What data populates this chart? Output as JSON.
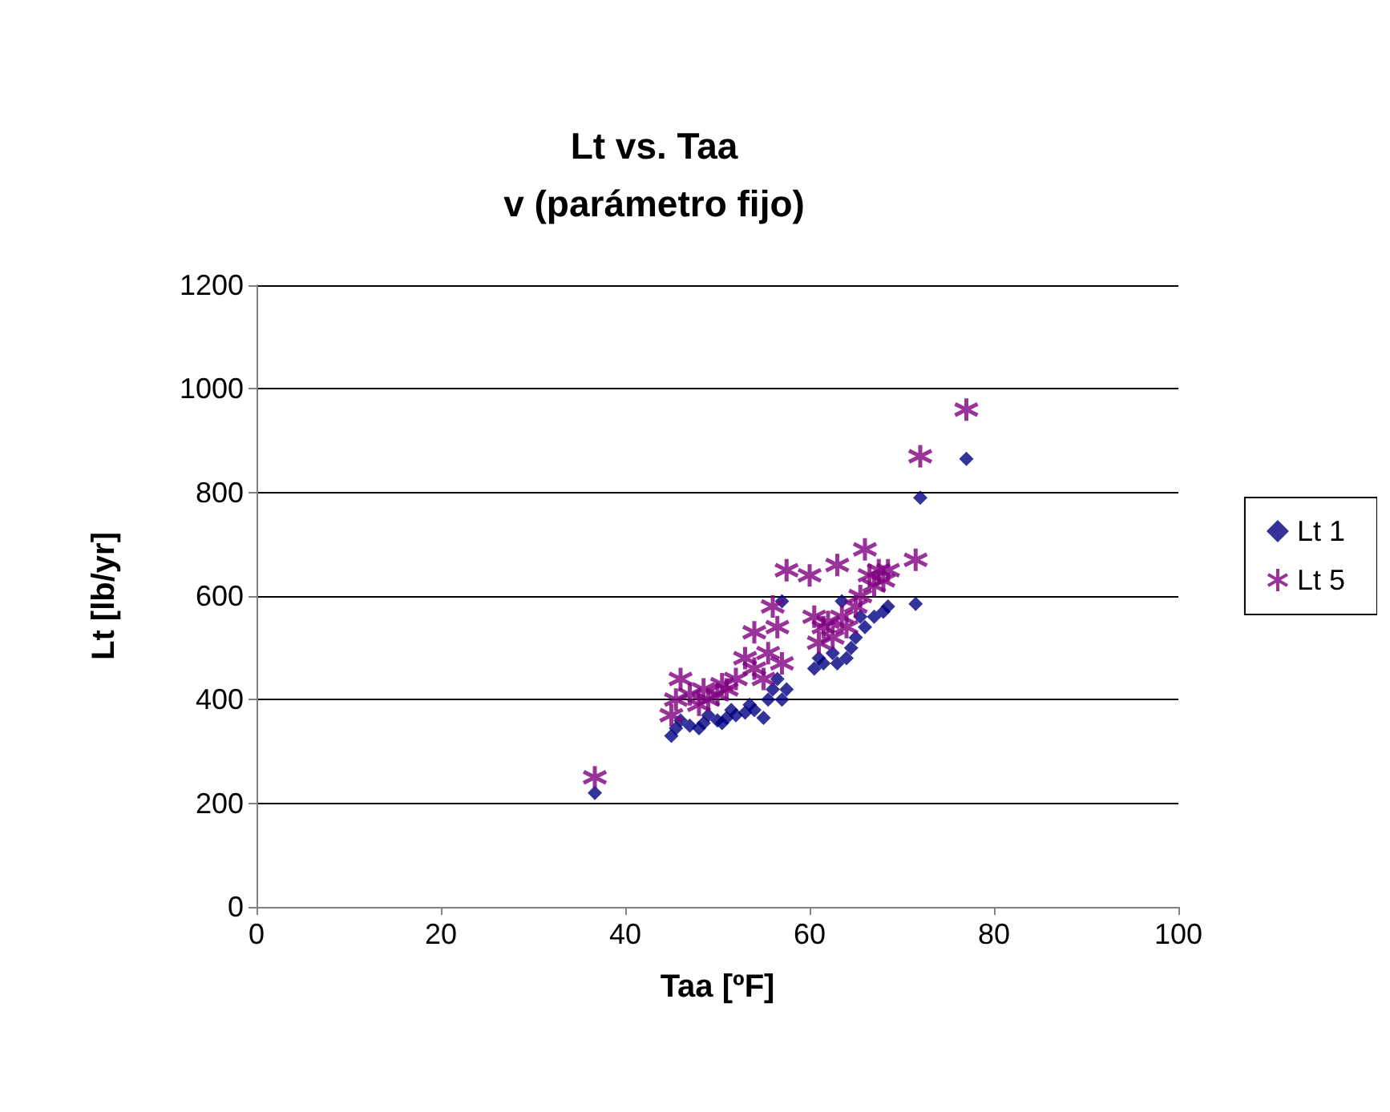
{
  "chart_data": {
    "type": "scatter",
    "title": "Lt vs. Taa\nv (parámetro fijo)",
    "xlabel": "Taa [ºF]",
    "ylabel": "Lt [lb/yr]",
    "xlim": [
      0,
      100
    ],
    "xticks": [
      0,
      20,
      40,
      60,
      80,
      100
    ],
    "ylim": [
      0,
      1200
    ],
    "yticks": [
      0,
      200,
      400,
      600,
      800,
      1000,
      1200
    ],
    "grid": "y",
    "legend": "right",
    "series": [
      {
        "name": "Lt 1",
        "color": "#000080",
        "marker": "diamond",
        "x": [
          36.7,
          45,
          45.5,
          46,
          47,
          48,
          48.5,
          49,
          50,
          50.5,
          51,
          51.5,
          52,
          53,
          53.5,
          54,
          55,
          55.5,
          56,
          56.5,
          57,
          57,
          57.5,
          60,
          60.5,
          61,
          61.5,
          62,
          62.5,
          63,
          63.5,
          64,
          64.5,
          65,
          65.5,
          66,
          66.5,
          67,
          68,
          68.5,
          71.5,
          72,
          77
        ],
        "values": [
          220,
          330,
          345,
          360,
          350,
          345,
          355,
          370,
          360,
          355,
          365,
          380,
          370,
          375,
          390,
          380,
          365,
          400,
          420,
          440,
          400,
          590,
          420,
          null,
          460,
          480,
          470,
          null,
          490,
          470,
          590,
          480,
          500,
          520,
          560,
          540,
          null,
          560,
          570,
          580,
          585,
          790,
          865
        ]
      },
      {
        "name": "Lt 5",
        "color": "#800080",
        "marker": "cross",
        "x": [
          36.7,
          45,
          45.5,
          46,
          47,
          48,
          48.5,
          49,
          50,
          50.5,
          51,
          52,
          53,
          54,
          54,
          55,
          55.5,
          56,
          56.5,
          57,
          57.5,
          60,
          60.5,
          61,
          61.5,
          62,
          62.5,
          63,
          63.5,
          64,
          65,
          65.5,
          66,
          66.5,
          67,
          67.5,
          68,
          68.5,
          71.5,
          72,
          77
        ],
        "values": [
          250,
          370,
          400,
          440,
          410,
          390,
          420,
          400,
          410,
          430,
          420,
          440,
          480,
          530,
          460,
          440,
          490,
          580,
          540,
          470,
          650,
          640,
          560,
          510,
          540,
          550,
          520,
          660,
          560,
          540,
          580,
          600,
          690,
          640,
          620,
          650,
          630,
          650,
          670,
          870,
          960
        ]
      }
    ]
  }
}
